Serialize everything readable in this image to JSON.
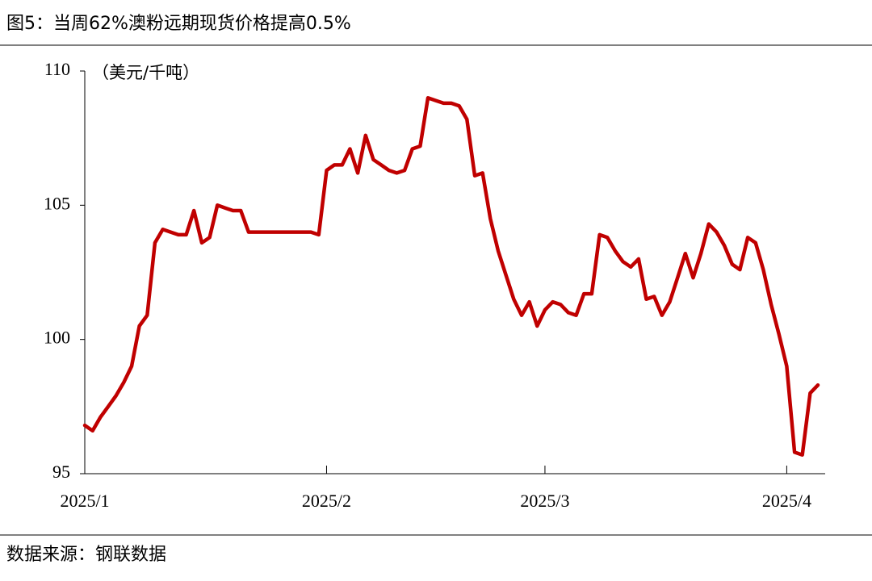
{
  "chart_data": {
    "type": "line",
    "title": "图5：当周62%澳粉远期现货价格提高0.5%",
    "y_label": "（美元/千吨）",
    "source": "数据来源：钢联数据",
    "categories": [
      "2025/1",
      null,
      null,
      null,
      null,
      null,
      null,
      null,
      null,
      null,
      null,
      null,
      null,
      null,
      null,
      null,
      null,
      null,
      null,
      null,
      null,
      null,
      null,
      null,
      null,
      null,
      null,
      null,
      null,
      null,
      null,
      "2025/2",
      null,
      null,
      null,
      null,
      null,
      null,
      null,
      null,
      null,
      null,
      null,
      null,
      null,
      null,
      null,
      null,
      null,
      null,
      null,
      null,
      null,
      null,
      null,
      null,
      null,
      null,
      null,
      "2025/3",
      null,
      null,
      null,
      null,
      null,
      null,
      null,
      null,
      null,
      null,
      null,
      null,
      null,
      null,
      null,
      null,
      null,
      null,
      null,
      null,
      null,
      null,
      null,
      null,
      null,
      null,
      null,
      null,
      null,
      null,
      "2025/4",
      null,
      null,
      null,
      null
    ],
    "series": [
      {
        "color": "#c00000",
        "values": [
          96.8,
          96.6,
          97.1,
          97.5,
          97.9,
          98.4,
          99.0,
          100.5,
          100.9,
          103.6,
          104.1,
          104.0,
          103.9,
          103.9,
          104.8,
          103.6,
          103.8,
          105.0,
          104.9,
          104.8,
          104.8,
          104.0,
          104.0,
          104.0,
          104.0,
          104.0,
          104.0,
          104.0,
          104.0,
          104.0,
          103.9,
          106.3,
          106.5,
          106.5,
          107.1,
          106.2,
          107.6,
          106.7,
          106.5,
          106.3,
          106.2,
          106.3,
          107.1,
          107.2,
          109.0,
          108.9,
          108.8,
          108.8,
          108.7,
          108.2,
          106.1,
          106.2,
          104.5,
          103.3,
          102.4,
          101.5,
          100.9,
          101.4,
          100.5,
          101.1,
          101.4,
          101.3,
          101.0,
          100.9,
          101.7,
          101.7,
          103.9,
          103.8,
          103.3,
          102.9,
          102.7,
          103.0,
          101.5,
          101.6,
          100.9,
          101.4,
          102.3,
          103.2,
          102.3,
          103.2,
          104.3,
          104.0,
          103.5,
          102.8,
          102.6,
          103.8,
          103.6,
          102.6,
          101.3,
          100.2,
          99.0,
          95.8,
          95.7,
          98.0,
          98.3
        ]
      }
    ],
    "ylim": [
      95,
      110
    ],
    "yticks": [
      95,
      100,
      105,
      110
    ]
  }
}
